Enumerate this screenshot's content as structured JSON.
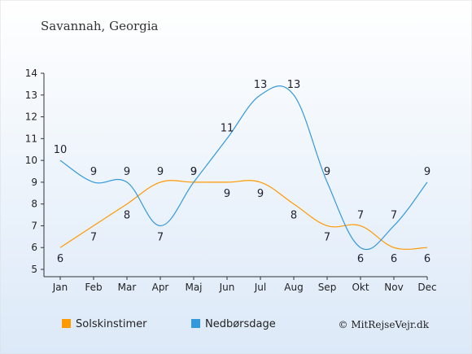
{
  "chart_data": {
    "type": "line",
    "title": "Savannah, Georgia",
    "categories": [
      "Jan",
      "Feb",
      "Mar",
      "Apr",
      "Maj",
      "Jun",
      "Jul",
      "Aug",
      "Sep",
      "Okt",
      "Nov",
      "Dec"
    ],
    "ylim": [
      5,
      14
    ],
    "yticks": [
      5,
      6,
      7,
      8,
      9,
      10,
      11,
      12,
      13,
      14
    ],
    "grid": false,
    "legend_position": "bottom",
    "series": [
      {
        "name": "Solskinstimer",
        "color": "#ff9900",
        "values": [
          6,
          7,
          8,
          9,
          9,
          9,
          9,
          8,
          7,
          7,
          6,
          6
        ]
      },
      {
        "name": "Nedbørsdage",
        "color": "#3399dd",
        "values": [
          10,
          9,
          9,
          7,
          9,
          11,
          13,
          13,
          9,
          6,
          7,
          9
        ]
      }
    ]
  },
  "credit": "© MitRejseVejr.dk",
  "colors": {
    "background_top": "#ffffff",
    "background_bottom": "#dce9f8",
    "axis": "#333333"
  }
}
